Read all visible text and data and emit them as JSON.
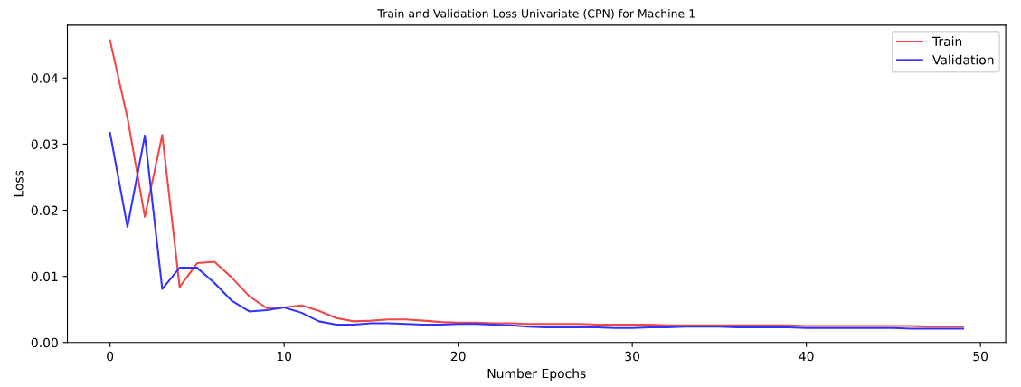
{
  "chart_data": {
    "type": "line",
    "title": "Train and Validation Loss Univariate (CPN) for Machine 1",
    "xlabel": "Number Epochs",
    "ylabel": "Loss",
    "x": [
      0,
      1,
      2,
      3,
      4,
      5,
      6,
      7,
      8,
      9,
      10,
      11,
      12,
      13,
      14,
      15,
      16,
      17,
      18,
      19,
      20,
      21,
      22,
      23,
      24,
      25,
      26,
      27,
      28,
      29,
      30,
      31,
      32,
      33,
      34,
      35,
      36,
      37,
      38,
      39,
      40,
      41,
      42,
      43,
      44,
      45,
      46,
      47,
      48,
      49
    ],
    "series": [
      {
        "name": "Train",
        "color": "#f04848",
        "values": [
          0.0457,
          0.034,
          0.019,
          0.0314,
          0.0084,
          0.012,
          0.0122,
          0.0098,
          0.007,
          0.0052,
          0.0053,
          0.0056,
          0.0048,
          0.0037,
          0.0032,
          0.0033,
          0.0035,
          0.0035,
          0.0033,
          0.0031,
          0.003,
          0.003,
          0.0029,
          0.0029,
          0.0028,
          0.0028,
          0.0028,
          0.0028,
          0.0027,
          0.0027,
          0.0027,
          0.0027,
          0.0026,
          0.0026,
          0.0026,
          0.0026,
          0.0026,
          0.0026,
          0.0026,
          0.0026,
          0.0025,
          0.0025,
          0.0025,
          0.0025,
          0.0025,
          0.0025,
          0.0025,
          0.0024,
          0.0024,
          0.0024
        ]
      },
      {
        "name": "Validation",
        "color": "#3333ff",
        "values": [
          0.0317,
          0.0175,
          0.0313,
          0.0081,
          0.0113,
          0.0113,
          0.009,
          0.0063,
          0.0047,
          0.0049,
          0.0053,
          0.0045,
          0.0032,
          0.0027,
          0.0027,
          0.0029,
          0.0029,
          0.0028,
          0.0027,
          0.0027,
          0.0028,
          0.0028,
          0.0027,
          0.0026,
          0.0024,
          0.0023,
          0.0023,
          0.0023,
          0.0023,
          0.0022,
          0.0022,
          0.0023,
          0.0023,
          0.0024,
          0.0024,
          0.0024,
          0.0023,
          0.0023,
          0.0023,
          0.0023,
          0.0022,
          0.0022,
          0.0022,
          0.0022,
          0.0022,
          0.0022,
          0.0021,
          0.0021,
          0.0021,
          0.0021
        ]
      }
    ],
    "xlim": [
      -2.45,
      51.45
    ],
    "ylim": [
      0,
      0.048
    ],
    "xticks": [
      0,
      10,
      20,
      30,
      40,
      50
    ],
    "yticks": [
      {
        "value": 0,
        "label": "0.00"
      },
      {
        "value": 0.01,
        "label": "0.01"
      },
      {
        "value": 0.02,
        "label": "0.02"
      },
      {
        "value": 0.03,
        "label": "0.03"
      },
      {
        "value": 0.04,
        "label": "0.04"
      }
    ],
    "legend": "top right",
    "grid": false,
    "marker": "none",
    "line_style": "solid"
  }
}
